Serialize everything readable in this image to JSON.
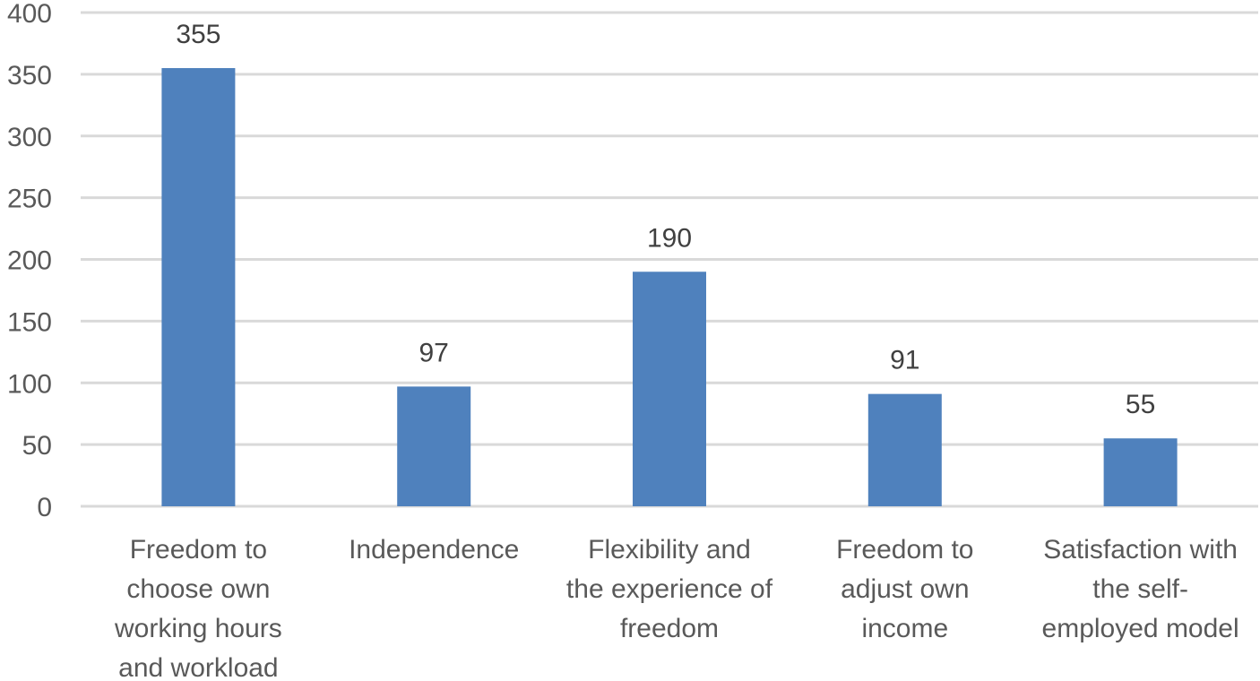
{
  "chart_data": {
    "type": "bar",
    "title": "",
    "xlabel": "",
    "ylabel": "",
    "categories": [
      [
        "Freedom to",
        "choose own",
        "working hours",
        "and workload"
      ],
      [
        "Independence"
      ],
      [
        "Flexibility and",
        "the experience of",
        "freedom"
      ],
      [
        "Freedom to",
        "adjust own",
        "income"
      ],
      [
        "Satisfaction with",
        "the self-",
        "employed model"
      ]
    ],
    "values": [
      355,
      97,
      190,
      91,
      55
    ],
    "data_labels": [
      "355",
      "97",
      "190",
      "91",
      "55"
    ],
    "ylim": [
      0,
      400
    ],
    "yticks": [
      0,
      50,
      100,
      150,
      200,
      250,
      300,
      350,
      400
    ],
    "grid": true,
    "legend": "none",
    "bar_color": "#4f81bd"
  }
}
